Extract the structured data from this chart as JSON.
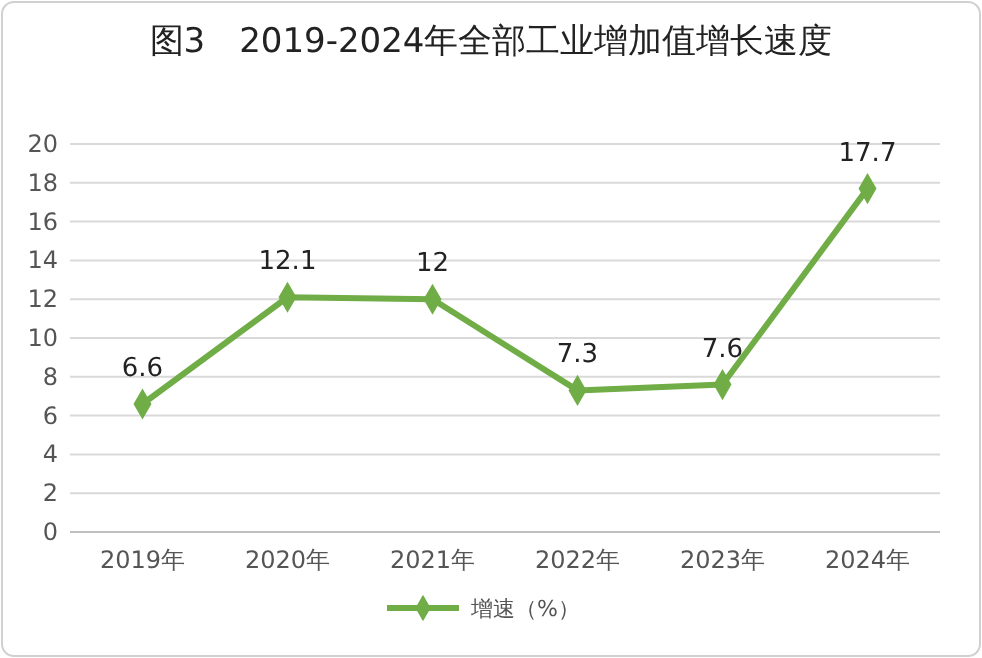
{
  "chart_data": {
    "type": "line",
    "title": "图3　2019-2024年全部工业增加值增长速度",
    "categories": [
      "2019年",
      "2020年",
      "2021年",
      "2022年",
      "2023年",
      "2024年"
    ],
    "series": [
      {
        "name": "增速（%）",
        "color": "#70ad47",
        "values": [
          6.6,
          12.1,
          12,
          7.3,
          7.6,
          17.7
        ]
      }
    ],
    "ylim": [
      0,
      20
    ],
    "yticks": [
      0,
      2,
      4,
      6,
      8,
      10,
      12,
      14,
      16,
      18,
      20
    ],
    "grid": "y",
    "legend": "bottom",
    "marker": "diamond",
    "line_style": "solid",
    "data_labels": true
  }
}
